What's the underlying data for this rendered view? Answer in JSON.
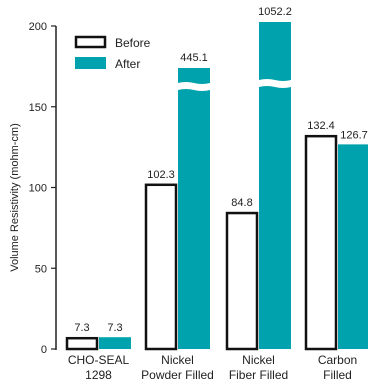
{
  "chart_data": {
    "type": "bar",
    "ylabel": "Volume Resistivity (mohm-cm)",
    "ylim": [
      0,
      200
    ],
    "yticks": [
      0,
      50,
      100,
      150,
      200
    ],
    "categories": [
      [
        "CHO-SEAL",
        "1298"
      ],
      [
        "Nickel",
        "Powder Filled"
      ],
      [
        "Nickel",
        "Fiber Filled"
      ],
      [
        "Carbon",
        "Filled"
      ]
    ],
    "series": [
      {
        "name": "Before",
        "values": [
          7.3,
          102.3,
          84.8,
          132.4
        ],
        "labels": [
          "7.3",
          "102.3",
          "84.8",
          "132.4"
        ]
      },
      {
        "name": "After",
        "values": [
          7.3,
          445.1,
          1052.2,
          126.7
        ],
        "labels": [
          "7.3",
          "445.1",
          "1052.2",
          "126.7"
        ]
      }
    ],
    "axis_breaks": "bars exceeding the axis maximum are drawn with a break",
    "legend_position": "top-left",
    "grid": false,
    "colors": {
      "before_fill": "#ffffff",
      "before_stroke": "#111111",
      "after_fill": "#00a3ad",
      "axis": "#222222"
    }
  }
}
